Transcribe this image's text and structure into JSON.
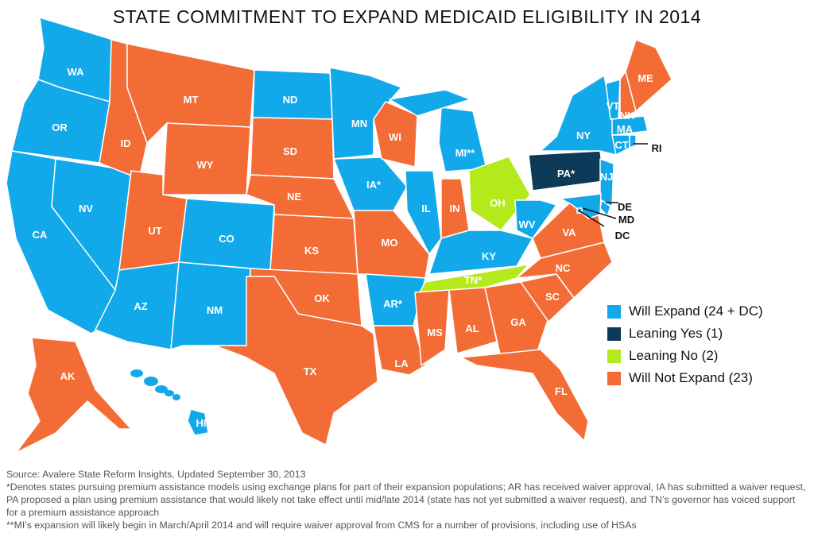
{
  "title": "STATE COMMITMENT TO EXPAND MEDICAID ELIGIBILITY IN 2014",
  "colors": {
    "will_expand": "#12a9ea",
    "leaning_yes": "#0c3a58",
    "leaning_no": "#b4ea1c",
    "will_not_expand": "#f36c35"
  },
  "legend": [
    {
      "key": "will_expand",
      "label": "Will Expand  (24 + DC)"
    },
    {
      "key": "leaning_yes",
      "label": "Leaning Yes  (1)"
    },
    {
      "key": "leaning_no",
      "label": "Leaning No  (2)"
    },
    {
      "key": "will_not_expand",
      "label": "Will Not Expand  (23)"
    }
  ],
  "states": [
    {
      "id": "WA",
      "label": "WA",
      "status": "will_expand"
    },
    {
      "id": "OR",
      "label": "OR",
      "status": "will_expand"
    },
    {
      "id": "CA",
      "label": "CA",
      "status": "will_expand"
    },
    {
      "id": "NV",
      "label": "NV",
      "status": "will_expand"
    },
    {
      "id": "ID",
      "label": "ID",
      "status": "will_not_expand"
    },
    {
      "id": "MT",
      "label": "MT",
      "status": "will_not_expand"
    },
    {
      "id": "WY",
      "label": "WY",
      "status": "will_not_expand"
    },
    {
      "id": "UT",
      "label": "UT",
      "status": "will_not_expand"
    },
    {
      "id": "CO",
      "label": "CO",
      "status": "will_expand"
    },
    {
      "id": "AZ",
      "label": "AZ",
      "status": "will_expand"
    },
    {
      "id": "NM",
      "label": "NM",
      "status": "will_expand"
    },
    {
      "id": "ND",
      "label": "ND",
      "status": "will_expand"
    },
    {
      "id": "SD",
      "label": "SD",
      "status": "will_not_expand"
    },
    {
      "id": "NE",
      "label": "NE",
      "status": "will_not_expand"
    },
    {
      "id": "KS",
      "label": "KS",
      "status": "will_not_expand"
    },
    {
      "id": "OK",
      "label": "OK",
      "status": "will_not_expand"
    },
    {
      "id": "TX",
      "label": "TX",
      "status": "will_not_expand"
    },
    {
      "id": "MN",
      "label": "MN",
      "status": "will_expand"
    },
    {
      "id": "IA",
      "label": "IA*",
      "status": "will_expand"
    },
    {
      "id": "MO",
      "label": "MO",
      "status": "will_not_expand"
    },
    {
      "id": "AR",
      "label": "AR*",
      "status": "will_expand"
    },
    {
      "id": "LA",
      "label": "LA",
      "status": "will_not_expand"
    },
    {
      "id": "WI",
      "label": "WI",
      "status": "will_not_expand"
    },
    {
      "id": "IL",
      "label": "IL",
      "status": "will_expand"
    },
    {
      "id": "IN",
      "label": "IN",
      "status": "will_not_expand"
    },
    {
      "id": "MI",
      "label": "MI**",
      "status": "will_expand"
    },
    {
      "id": "OH",
      "label": "OH",
      "status": "leaning_no"
    },
    {
      "id": "KY",
      "label": "KY",
      "status": "will_expand"
    },
    {
      "id": "TN",
      "label": "TN*",
      "status": "leaning_no"
    },
    {
      "id": "MS",
      "label": "MS",
      "status": "will_not_expand"
    },
    {
      "id": "AL",
      "label": "AL",
      "status": "will_not_expand"
    },
    {
      "id": "GA",
      "label": "GA",
      "status": "will_not_expand"
    },
    {
      "id": "FL",
      "label": "FL",
      "status": "will_not_expand"
    },
    {
      "id": "SC",
      "label": "SC",
      "status": "will_not_expand"
    },
    {
      "id": "NC",
      "label": "NC",
      "status": "will_not_expand"
    },
    {
      "id": "VA",
      "label": "VA",
      "status": "will_not_expand"
    },
    {
      "id": "WV",
      "label": "WV",
      "status": "will_expand"
    },
    {
      "id": "PA",
      "label": "PA*",
      "status": "leaning_yes"
    },
    {
      "id": "NY",
      "label": "NY",
      "status": "will_expand"
    },
    {
      "id": "NJ",
      "label": "NJ",
      "status": "will_expand"
    },
    {
      "id": "VT",
      "label": "VT",
      "status": "will_expand"
    },
    {
      "id": "NH",
      "label": "NH",
      "status": "will_not_expand"
    },
    {
      "id": "ME",
      "label": "ME",
      "status": "will_not_expand"
    },
    {
      "id": "MA",
      "label": "MA",
      "status": "will_expand"
    },
    {
      "id": "CT",
      "label": "CT",
      "status": "will_expand"
    },
    {
      "id": "RI",
      "label": "RI",
      "status": "will_expand"
    },
    {
      "id": "DE",
      "label": "DE",
      "status": "will_expand"
    },
    {
      "id": "MD",
      "label": "MD",
      "status": "will_expand"
    },
    {
      "id": "DC",
      "label": "DC",
      "status": "will_expand"
    },
    {
      "id": "AK",
      "label": "AK",
      "status": "will_not_expand"
    },
    {
      "id": "HI",
      "label": "HI",
      "status": "will_expand"
    }
  ],
  "notes": {
    "source": "Source: Avalere State Reform Insights, Updated September 30, 2013",
    "note1": "*Denotes states pursuing premium assistance models using exchange plans for part of their expansion populations;  AR has received waiver approval,  IA has submitted  a waiver request,  PA proposed a plan using premium assistance that would likely not take effect until mid/late 2014 (state has not yet submitted  a waiver request), and TN’s governor has voiced support for a premium assistance approach",
    "note2": "**MI’s expansion will likely begin in March/April 2014 and will require waiver approval from CMS for a number of provisions, including use of HSAs"
  }
}
